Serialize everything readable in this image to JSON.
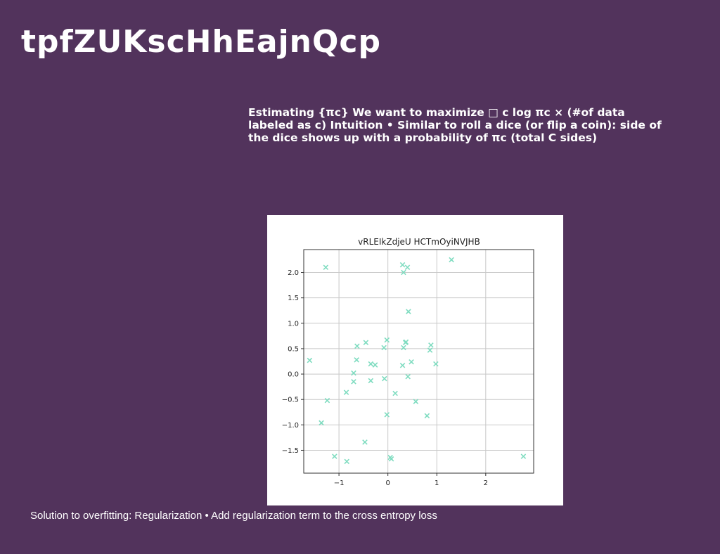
{
  "slide": {
    "title": "tpfZUKscHhEajnQcp",
    "body": "Estimating {πc} We want to maximize □ c log πc × (#of data labeled as c) Intuition • Similar to roll a dice (or flip a coin): side of the dice shows up with a probability of πc (total C sides)",
    "footer": "Solution to overfitting: Regularization • Add regularization term to the cross entropy loss"
  },
  "colors": {
    "background": "#52335c",
    "text": "#ffffff",
    "marker": "#7fdcc0"
  },
  "chart_data": {
    "type": "scatter",
    "title": "vRLEIkZdjeU HCTmOyiNVJHB",
    "xlabel": "",
    "ylabel": "",
    "xlim": [
      -1.72,
      2.98
    ],
    "ylim": [
      -1.95,
      2.45
    ],
    "grid": true,
    "marker": "x",
    "x_ticks": [
      "−1",
      "0",
      "1",
      "2"
    ],
    "x_tick_values": [
      -1,
      0,
      1,
      2
    ],
    "y_ticks": [
      "2.0",
      "1.5",
      "1.0",
      "0.5",
      "0.0",
      "−0.5",
      "−1.0",
      "−1.5"
    ],
    "y_tick_values": [
      2.0,
      1.5,
      1.0,
      0.5,
      0.0,
      -0.5,
      -1.0,
      -1.5
    ],
    "points": [
      [
        -1.27,
        2.1
      ],
      [
        0.3,
        2.15
      ],
      [
        0.4,
        2.1
      ],
      [
        0.32,
        2.0
      ],
      [
        1.3,
        2.25
      ],
      [
        0.42,
        1.23
      ],
      [
        -0.63,
        0.55
      ],
      [
        -0.45,
        0.62
      ],
      [
        -0.02,
        0.67
      ],
      [
        -0.08,
        0.52
      ],
      [
        0.37,
        0.63
      ],
      [
        0.36,
        0.62
      ],
      [
        0.32,
        0.52
      ],
      [
        0.88,
        0.57
      ],
      [
        0.86,
        0.47
      ],
      [
        -1.6,
        0.27
      ],
      [
        -0.64,
        0.28
      ],
      [
        -0.7,
        0.02
      ],
      [
        -0.35,
        0.2
      ],
      [
        -0.26,
        0.18
      ],
      [
        0.3,
        0.17
      ],
      [
        0.48,
        0.24
      ],
      [
        0.98,
        0.2
      ],
      [
        -0.7,
        -0.15
      ],
      [
        -0.35,
        -0.13
      ],
      [
        -0.07,
        -0.09
      ],
      [
        0.41,
        -0.05
      ],
      [
        -0.85,
        -0.36
      ],
      [
        0.15,
        -0.38
      ],
      [
        -1.24,
        -0.52
      ],
      [
        0.57,
        -0.54
      ],
      [
        -0.02,
        -0.8
      ],
      [
        0.8,
        -0.82
      ],
      [
        -1.36,
        -0.96
      ],
      [
        -0.47,
        -1.34
      ],
      [
        -1.09,
        -1.62
      ],
      [
        -0.84,
        -1.72
      ],
      [
        0.05,
        -1.64
      ],
      [
        0.07,
        -1.67
      ],
      [
        2.77,
        -1.62
      ]
    ]
  }
}
